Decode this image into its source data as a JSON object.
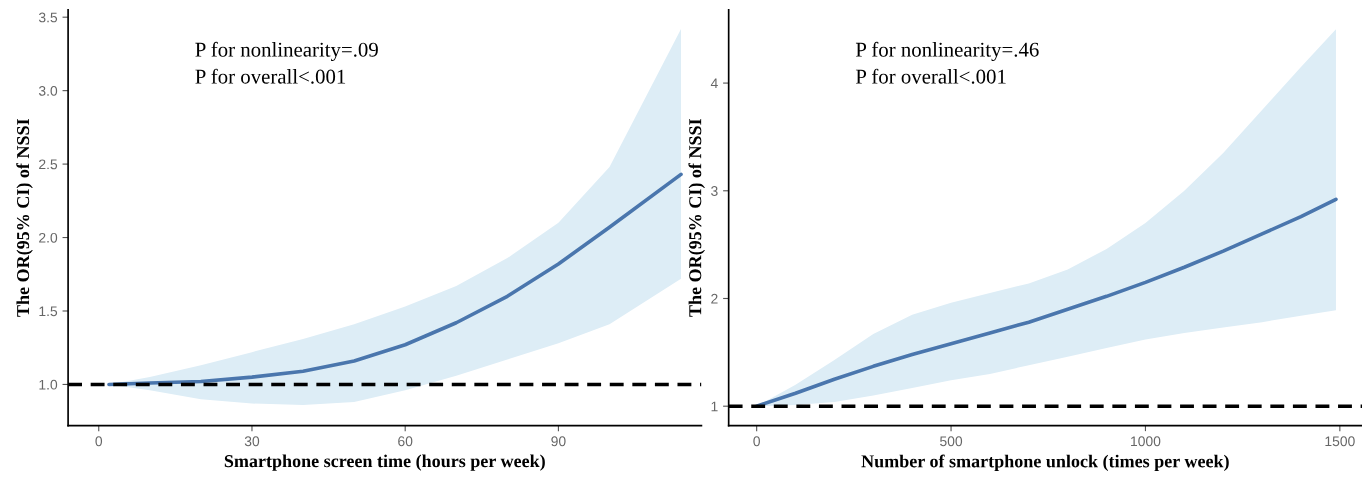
{
  "chart_data": [
    {
      "type": "line",
      "xlabel": "Smartphone screen time (hours per week)",
      "ylabel": "The OR(95% CI) of NSSI",
      "annotations": [
        "P for nonlinearity=.09",
        "P for overall<.001"
      ],
      "x": [
        2,
        10,
        20,
        30,
        40,
        50,
        60,
        70,
        80,
        90,
        100,
        114
      ],
      "series": [
        {
          "color": "#4a76ad",
          "values": [
            1.0,
            1.01,
            1.02,
            1.05,
            1.09,
            1.16,
            1.27,
            1.42,
            1.6,
            1.82,
            2.07,
            2.43
          ],
          "lower": [
            1.0,
            0.96,
            0.9,
            0.87,
            0.86,
            0.88,
            0.96,
            1.06,
            1.17,
            1.28,
            1.41,
            1.72
          ],
          "upper": [
            1.0,
            1.05,
            1.13,
            1.22,
            1.31,
            1.41,
            1.53,
            1.67,
            1.86,
            2.1,
            2.48,
            3.42
          ]
        }
      ],
      "xlim": [
        -6,
        118
      ],
      "xticks": [
        0,
        30,
        60,
        90
      ],
      "ylim": [
        0.72,
        3.55
      ],
      "yticks": [
        {
          "value": 1.0,
          "label": "1.0"
        },
        1.5,
        {
          "value": 2.0,
          "label": "2.0"
        },
        2.5,
        {
          "value": 3.0,
          "label": "3.0"
        },
        3.5
      ],
      "ref_lines": [
        {
          "axis": "y",
          "value": 1,
          "color": "#000000",
          "line_style": "dashed"
        }
      ],
      "grid": false,
      "legend": false
    },
    {
      "type": "line",
      "xlabel": "Number of smartphone unlock (times per week)",
      "ylabel": "The OR(95% CI) of NSSI",
      "annotations": [
        "P for nonlinearity=.46",
        "P for overall<.001"
      ],
      "x": [
        0,
        100,
        200,
        300,
        400,
        500,
        600,
        700,
        800,
        900,
        1000,
        1100,
        1200,
        1300,
        1400,
        1490
      ],
      "series": [
        {
          "color": "#4a76ad",
          "values": [
            1.0,
            1.12,
            1.25,
            1.37,
            1.48,
            1.58,
            1.68,
            1.78,
            1.9,
            2.02,
            2.15,
            2.29,
            2.44,
            2.6,
            2.76,
            2.92
          ],
          "lower": [
            1.0,
            1.01,
            1.04,
            1.1,
            1.17,
            1.24,
            1.3,
            1.38,
            1.46,
            1.54,
            1.62,
            1.68,
            1.73,
            1.78,
            1.84,
            1.89
          ],
          "upper": [
            1.0,
            1.2,
            1.43,
            1.67,
            1.85,
            1.96,
            2.05,
            2.14,
            2.27,
            2.46,
            2.7,
            3.0,
            3.35,
            3.75,
            4.15,
            4.5
          ]
        }
      ],
      "xlim": [
        -72,
        1557
      ],
      "xticks": [
        0,
        500,
        1000,
        1500
      ],
      "ylim": [
        0.82,
        4.68
      ],
      "yticks": [
        1,
        2,
        3,
        4
      ],
      "ref_lines": [
        {
          "axis": "y",
          "value": 1,
          "color": "#000000",
          "line_style": "dashed"
        }
      ],
      "grid": false,
      "legend": false
    }
  ]
}
